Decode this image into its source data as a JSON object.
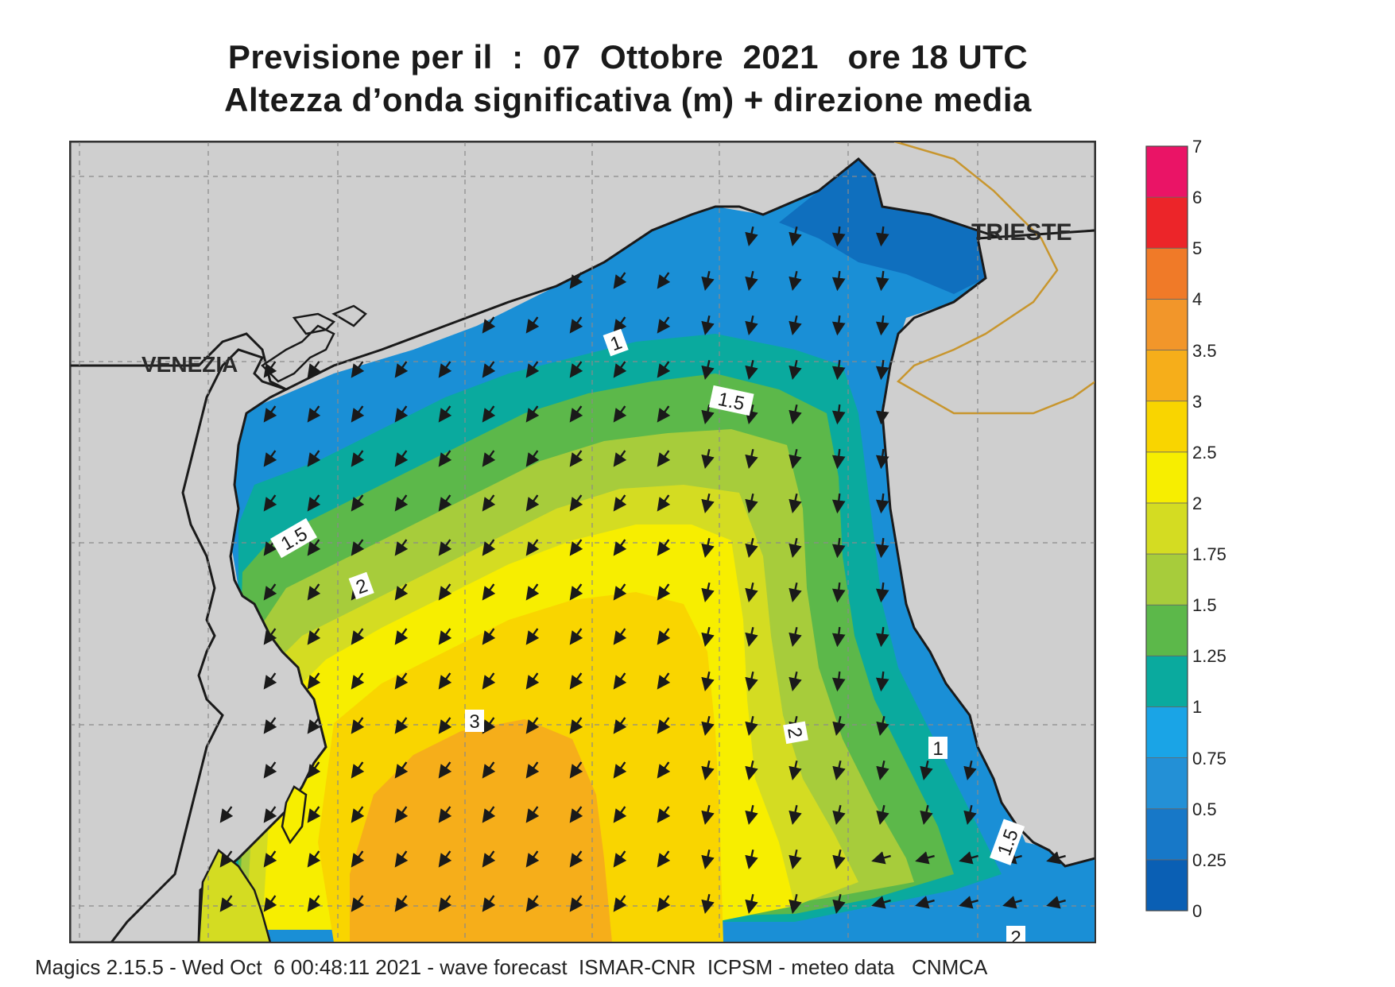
{
  "title": {
    "line1": "Previsione per il  :  07  Ottobre  2021   ore 18 UTC",
    "line2": "Altezza d’onda significativa (m) + direzione media"
  },
  "map_labels": {
    "venezia": "VENEZIA",
    "trieste": "TRIESTE"
  },
  "contour_labels": [
    "1",
    "1.5",
    "1.5",
    "2",
    "3",
    "2",
    "1",
    "1.5",
    "2"
  ],
  "colorbar": {
    "ticks": [
      "0",
      "0.25",
      "0.5",
      "0.75",
      "1",
      "1.25",
      "1.5",
      "1.75",
      "2",
      "2.5",
      "3",
      "3.5",
      "4",
      "5",
      "6",
      "7"
    ],
    "colors": [
      "#0a5fb4",
      "#1778c8",
      "#2390d6",
      "#1aa4e6",
      "#0aaa9e",
      "#5cb84a",
      "#a7cc3b",
      "#d4dc22",
      "#f7ee00",
      "#f9d500",
      "#f6ae1a",
      "#f2962a",
      "#f07a28",
      "#ec2529",
      "#ea1466"
    ]
  },
  "footer": "Magics 2.15.5 - Wed Oct  6 00:48:11 2021 - wave forecast  ISMAR-CNR  ICPSM - meteo data   CNMCA"
}
